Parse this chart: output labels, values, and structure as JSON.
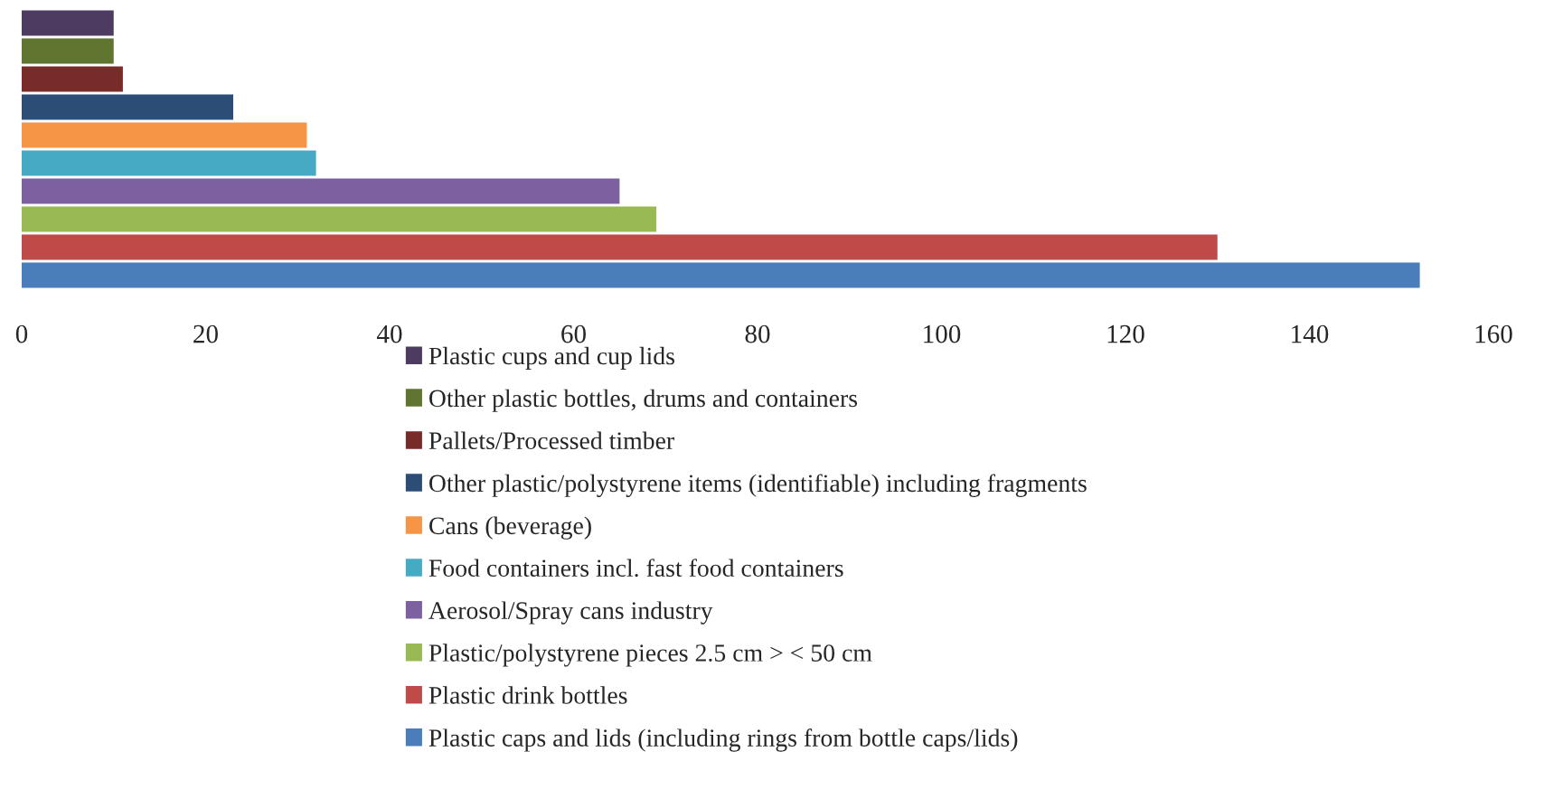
{
  "chart_data": {
    "type": "bar",
    "orientation": "horizontal",
    "categories": [
      null
    ],
    "series": [
      {
        "name": "Plastic cups and cup lids",
        "color": "#4d3b62",
        "values": [
          10
        ]
      },
      {
        "name": "Other plastic bottles, drums and containers",
        "color": "#5f7530",
        "values": [
          10
        ]
      },
      {
        "name": "Pallets/Processed timber",
        "color": "#772c2a",
        "values": [
          11
        ]
      },
      {
        "name": "Other plastic/polystyrene items (identifiable) including fragments",
        "color": "#2c4d75",
        "values": [
          23
        ]
      },
      {
        "name": "Cans (beverage)",
        "color": "#f69546",
        "values": [
          31
        ]
      },
      {
        "name": "Food containers incl. fast food containers",
        "color": "#46aac5",
        "values": [
          32
        ]
      },
      {
        "name": "Aerosol/Spray cans industry",
        "color": "#7d60a0",
        "values": [
          65
        ]
      },
      {
        "name": "Plastic/polystyrene pieces 2.5 cm > < 50 cm",
        "color": "#98b954",
        "values": [
          69
        ]
      },
      {
        "name": "Plastic drink bottles",
        "color": "#be4b48",
        "values": [
          130
        ]
      },
      {
        "name": "Plastic caps and lids (including rings from bottle caps/lids)",
        "color": "#4a7ebb",
        "values": [
          152
        ]
      }
    ],
    "xlim": [
      0,
      160
    ],
    "xticks": [
      0,
      20,
      40,
      60,
      80,
      100,
      120,
      140,
      160
    ],
    "legend": "bottom",
    "tick_labels": "x"
  }
}
